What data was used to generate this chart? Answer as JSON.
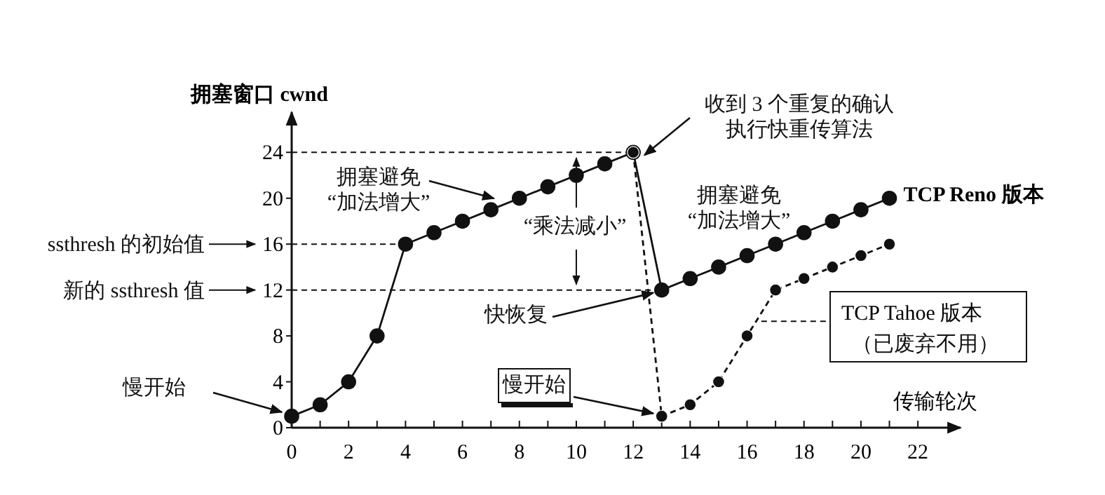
{
  "chart_data": {
    "type": "line",
    "xlabel": "传输轮次",
    "ylabel": "拥塞窗口 cwnd",
    "xlim": [
      0,
      23.5
    ],
    "ylim": [
      0,
      27.5
    ],
    "xticks": [
      0,
      {
        "value": 1,
        "label": null
      },
      2,
      {
        "value": 3,
        "label": null
      },
      4,
      {
        "value": 5,
        "label": null
      },
      6,
      {
        "value": 7,
        "label": null
      },
      8,
      {
        "value": 9,
        "label": null
      },
      10,
      {
        "value": 11,
        "label": null
      },
      12,
      {
        "value": 13,
        "label": null
      },
      14,
      {
        "value": 15,
        "label": null
      },
      16,
      {
        "value": 17,
        "label": null
      },
      18,
      {
        "value": 19,
        "label": null
      },
      20,
      {
        "value": 21,
        "label": null
      },
      22
    ],
    "yticks": [
      0,
      4,
      8,
      12,
      16,
      20,
      24
    ],
    "grid": false,
    "marker": "circle",
    "series": [
      {
        "name": "TCP Reno 版本",
        "color": "#111111",
        "line_style": "solid",
        "x": [
          0,
          1,
          2,
          3,
          4,
          5,
          6,
          7,
          8,
          9,
          10,
          11,
          12,
          13,
          14,
          15,
          16,
          17,
          18,
          19,
          20,
          21
        ],
        "values": [
          1,
          2,
          4,
          8,
          16,
          17,
          18,
          19,
          20,
          21,
          22,
          23,
          24,
          12,
          13,
          14,
          15,
          16,
          17,
          18,
          19,
          20
        ]
      },
      {
        "name": "TCP Tahoe 版本",
        "color": "#111111",
        "line_style": "dashed",
        "x": [
          12,
          13,
          14,
          15,
          16,
          17,
          18,
          19,
          20,
          21
        ],
        "values": [
          24,
          1,
          2,
          4,
          8,
          12,
          13,
          14,
          15,
          16
        ]
      }
    ],
    "ref_lines": [
      {
        "axis": "y",
        "value": 24,
        "line_style": "dashed",
        "color": "#111111"
      },
      {
        "axis": "y",
        "value": 16,
        "line_style": "dashed",
        "color": "#111111"
      },
      {
        "axis": "y",
        "value": 12,
        "line_style": "dashed",
        "color": "#111111"
      }
    ],
    "annotations": [
      {
        "text": "慢开始",
        "x": 0,
        "y": 1
      },
      {
        "text": "拥塞避免“加法增大”",
        "x": 7.5,
        "y": 19.5
      },
      {
        "text": "“乘法减小”",
        "x": 10,
        "y": 12
      },
      {
        "text": "快恢复",
        "x": 13,
        "y": 12
      },
      {
        "text": "收到 3 个重复的确认执行快重传算法",
        "x": 12,
        "y": 24
      },
      "拥塞避免“加法增大”",
      {
        "text": "慢开始",
        "x": 13,
        "y": 1
      },
      "（已废弃不用）",
      "ssthresh 的初始值",
      "新的 ssthresh 值"
    ]
  }
}
